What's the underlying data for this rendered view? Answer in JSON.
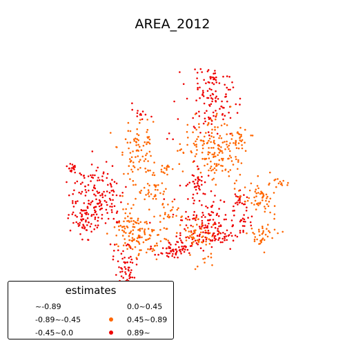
{
  "map": {
    "title": "AREA_2012"
  },
  "legend": {
    "title": "estimates",
    "items": [
      {
        "label": "~-0.89",
        "color": null
      },
      {
        "label": "-0.89~-0.45",
        "color": null
      },
      {
        "label": "-0.45~0.0",
        "color": null
      },
      {
        "label": "0.0~0.45",
        "color": null
      },
      {
        "label": "0.45~0.89",
        "color": "#ff6600"
      },
      {
        "label": "0.89~",
        "color": "#ee0000"
      }
    ]
  },
  "colors": {
    "class_0.45_0.89": "#ff6600",
    "class_0.89_up": "#ee0000"
  }
}
